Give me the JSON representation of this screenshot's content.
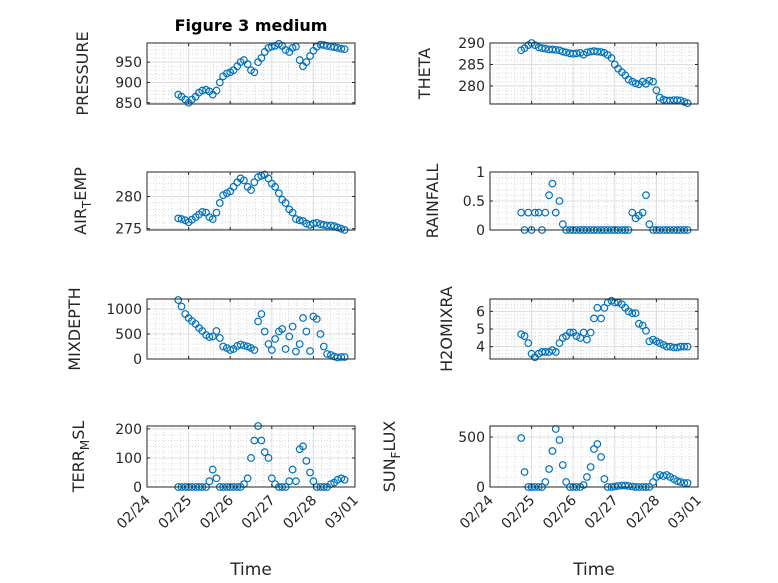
{
  "chart_data": {
    "type": "scatter",
    "title": "Figure 3 medium",
    "xlabel": "Time",
    "xlim_days_since_0224": [
      0,
      5
    ],
    "xtick_labels": [
      "02/24",
      "02/25",
      "02/26",
      "02/27",
      "02/28",
      "03/01"
    ],
    "marker_color": "#0072BD",
    "grid": "major and minor",
    "x_days_since_0224": [
      0.75,
      0.83,
      0.92,
      1.0,
      1.08,
      1.17,
      1.25,
      1.33,
      1.42,
      1.5,
      1.58,
      1.67,
      1.75,
      1.83,
      1.92,
      2.0,
      2.08,
      2.17,
      2.25,
      2.33,
      2.42,
      2.5,
      2.58,
      2.67,
      2.75,
      2.83,
      2.92,
      3.0,
      3.08,
      3.17,
      3.25,
      3.33,
      3.42,
      3.5,
      3.58,
      3.67,
      3.75,
      3.83,
      3.92,
      4.0,
      4.08,
      4.17,
      4.25,
      4.33,
      4.42,
      4.5,
      4.58,
      4.67,
      4.75
    ],
    "subplots": [
      {
        "ylabel": {
          "main": "PRESSURE",
          "sub": "",
          "rest": ""
        },
        "ylim": [
          847,
          997
        ],
        "yticks": [
          850,
          900,
          950
        ],
        "values": [
          870,
          865,
          858,
          850,
          858,
          865,
          875,
          880,
          882,
          878,
          870,
          880,
          900,
          915,
          922,
          925,
          930,
          940,
          950,
          955,
          945,
          930,
          925,
          950,
          960,
          975,
          985,
          988,
          990,
          995,
          990,
          980,
          975,
          985,
          988,
          955,
          940,
          950,
          965,
          978,
          988,
          993,
          992,
          990,
          988,
          987,
          985,
          983,
          982
        ]
      },
      {
        "ylabel": {
          "main": "THETA",
          "sub": "",
          "rest": ""
        },
        "ylim": [
          275.8,
          290
        ],
        "yticks": [
          280,
          285,
          290
        ],
        "values": [
          288.3,
          288.8,
          289.5,
          290,
          289.5,
          289,
          288.8,
          288.7,
          288.5,
          288.5,
          288.4,
          288.3,
          288.0,
          287.8,
          287.6,
          287.5,
          287.6,
          287.7,
          287.3,
          287.8,
          288.0,
          288.1,
          288.0,
          287.9,
          287.7,
          287.2,
          286.5,
          285.0,
          284.0,
          283.2,
          282.5,
          281.5,
          281.0,
          280.6,
          280.4,
          281.0,
          280.5,
          281.2,
          281.0,
          279.0,
          277.3,
          276.8,
          276.6,
          276.6,
          276.7,
          276.7,
          276.6,
          276.3,
          276.0
        ]
      },
      {
        "ylabel": {
          "main": "AIR",
          "sub": "T",
          "rest": "EMP"
        },
        "ylim": [
          274.8,
          283.8
        ],
        "yticks": [
          275,
          280
        ],
        "values": [
          276.6,
          276.5,
          276.3,
          276.0,
          276.4,
          276.8,
          277.2,
          277.6,
          277.5,
          276.8,
          276.5,
          277.5,
          279.0,
          280.2,
          280.5,
          280.8,
          281.5,
          282.2,
          282.8,
          282.5,
          281.5,
          281.0,
          282.2,
          283.0,
          283.2,
          283.4,
          282.8,
          282.0,
          281.5,
          280.5,
          279.5,
          279.0,
          278.0,
          277.5,
          276.5,
          276.3,
          276.2,
          275.8,
          275.6,
          275.8,
          275.9,
          275.7,
          275.6,
          275.5,
          275.5,
          275.4,
          275.2,
          275.0,
          274.8
        ]
      },
      {
        "ylabel": {
          "main": "RAINFALL",
          "sub": "",
          "rest": ""
        },
        "ylim": [
          0,
          1
        ],
        "yticks": [
          0,
          0.5,
          1
        ],
        "values": [
          0.3,
          0,
          0.3,
          0,
          0.3,
          0.3,
          0,
          0.3,
          0.6,
          0.8,
          0.3,
          0.5,
          0.1,
          0,
          0,
          0,
          0,
          0,
          0,
          0,
          0,
          0,
          0,
          0,
          0,
          0,
          0,
          0,
          0,
          0,
          0,
          0,
          0.3,
          0.2,
          0.25,
          0.3,
          0.6,
          0.1,
          0,
          0,
          0,
          0,
          0,
          0,
          0,
          0,
          0,
          0,
          0
        ]
      },
      {
        "ylabel": {
          "main": "MIXDEPTH",
          "sub": "",
          "rest": ""
        },
        "ylim": [
          0,
          1200
        ],
        "yticks": [
          0,
          500,
          1000
        ],
        "values": [
          1180,
          1050,
          900,
          820,
          760,
          700,
          620,
          560,
          480,
          440,
          450,
          560,
          420,
          250,
          220,
          180,
          200,
          260,
          290,
          270,
          250,
          220,
          180,
          750,
          900,
          550,
          300,
          180,
          400,
          550,
          600,
          200,
          450,
          650,
          150,
          300,
          820,
          550,
          160,
          850,
          800,
          500,
          250,
          100,
          80,
          50,
          30,
          40,
          40
        ]
      },
      {
        "ylabel": {
          "main": "H2OMIXRA",
          "sub": "",
          "rest": ""
        },
        "ylim": [
          3.3,
          6.7
        ],
        "yticks": [
          4,
          5,
          6
        ],
        "values": [
          4.7,
          4.6,
          4.2,
          3.6,
          3.4,
          3.6,
          3.7,
          3.7,
          3.7,
          3.8,
          3.7,
          4.2,
          4.5,
          4.6,
          4.8,
          4.8,
          4.6,
          4.5,
          4.8,
          4.4,
          4.8,
          5.6,
          6.2,
          5.6,
          6.2,
          6.5,
          6.6,
          6.5,
          6.5,
          6.4,
          6.2,
          6.0,
          5.9,
          5.9,
          5.3,
          5.2,
          4.9,
          4.3,
          4.4,
          4.3,
          4.2,
          4.1,
          4.0,
          4.0,
          3.95,
          3.95,
          4.0,
          4.0,
          4.0
        ]
      },
      {
        "ylabel": {
          "main": "TERR",
          "sub": "M",
          "rest": "SL"
        },
        "ylim": [
          0,
          210
        ],
        "yticks": [
          0,
          100,
          200
        ],
        "values": [
          0,
          0,
          0,
          0,
          0,
          0,
          0,
          0,
          0,
          20,
          60,
          30,
          0,
          0,
          0,
          0,
          0,
          0,
          0,
          10,
          30,
          100,
          160,
          210,
          160,
          120,
          100,
          30,
          10,
          0,
          0,
          0,
          20,
          60,
          20,
          130,
          140,
          90,
          50,
          20,
          0,
          0,
          0,
          0,
          10,
          15,
          25,
          30,
          25
        ]
      },
      {
        "ylabel": {
          "main": "SUN",
          "sub": "F",
          "rest": "LUX"
        },
        "ylim": [
          0,
          610
        ],
        "yticks": [
          0,
          500
        ],
        "values": [
          490,
          150,
          0,
          0,
          0,
          0,
          0,
          50,
          180,
          360,
          580,
          470,
          220,
          50,
          0,
          0,
          0,
          0,
          20,
          100,
          200,
          380,
          430,
          300,
          80,
          0,
          0,
          5,
          10,
          15,
          15,
          10,
          5,
          0,
          0,
          0,
          0,
          0,
          50,
          100,
          120,
          110,
          120,
          100,
          80,
          60,
          50,
          40,
          40
        ]
      }
    ]
  }
}
